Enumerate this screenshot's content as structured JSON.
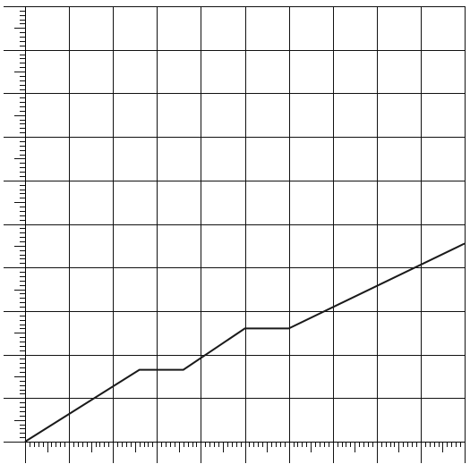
{
  "chart_data": {
    "type": "line",
    "title": "",
    "xlabel": "",
    "ylabel": "",
    "xlim": [
      0,
      10
    ],
    "ylim": [
      0,
      10
    ],
    "x_major_step": 1,
    "y_major_step": 1,
    "minor_per_major": 10,
    "grid": true,
    "legend": "none",
    "tick_labels": "none",
    "series": [
      {
        "x": [
          0,
          2.6,
          3.6,
          5.0,
          6.0,
          10.0
        ],
        "y": [
          0,
          1.65,
          1.65,
          2.6,
          2.6,
          4.55
        ]
      }
    ],
    "colors": {
      "line": "#1a1a1a",
      "grid": "#111111",
      "background": "#ffffff"
    }
  }
}
